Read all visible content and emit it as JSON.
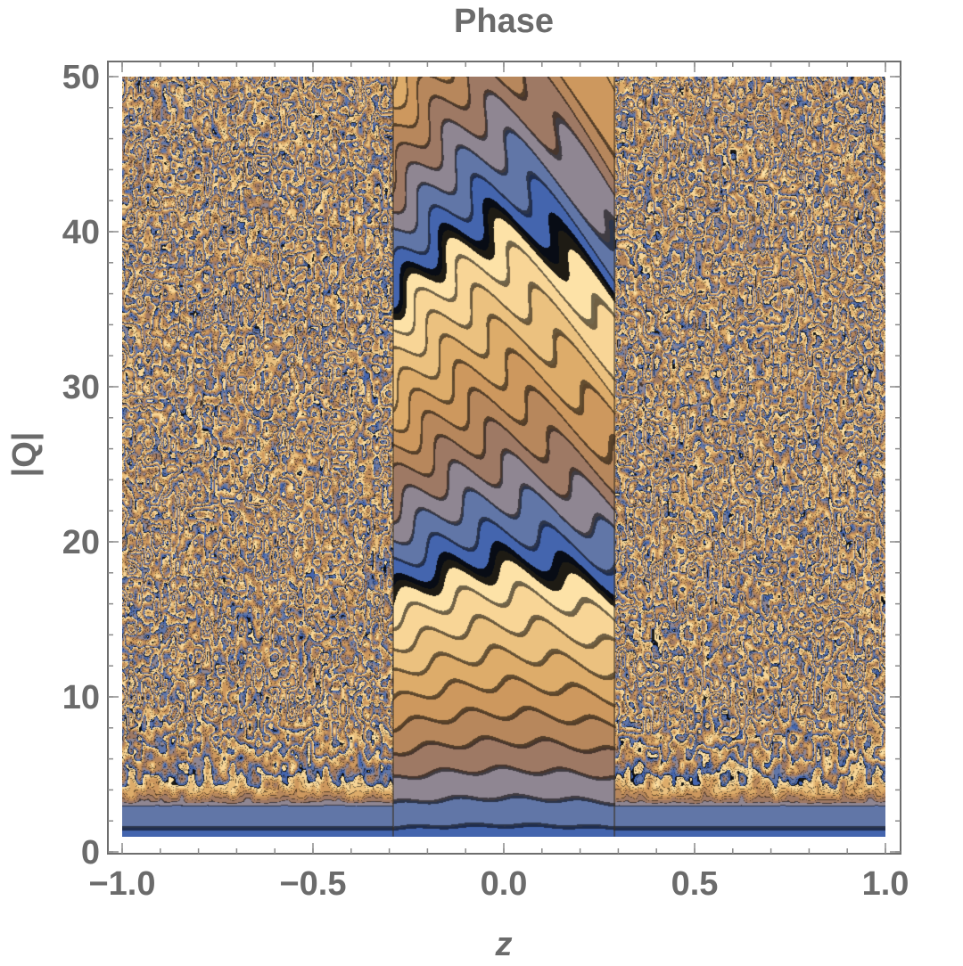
{
  "chart_data": {
    "type": "heatmap",
    "subtype": "contour",
    "title": "Phase",
    "xlabel": "z",
    "ylabel": "|Q|",
    "xlim": [
      -1.0,
      1.0
    ],
    "ylim": [
      0,
      50
    ],
    "data_x_range": [
      -1.0,
      1.0
    ],
    "data_y_range": [
      1,
      50
    ],
    "x_ticks": [
      -1.0,
      -0.5,
      0.0,
      0.5,
      1.0
    ],
    "x_tick_labels": [
      "−1.0",
      "−0.5",
      "0.0",
      "0.5",
      "1.0"
    ],
    "y_ticks": [
      0,
      10,
      20,
      30,
      40,
      50
    ],
    "y_tick_labels": [
      "0",
      "10",
      "20",
      "30",
      "40",
      "50"
    ],
    "central_region_z": [
      -0.29,
      0.29
    ],
    "grid": false,
    "legend": "none",
    "colors": {
      "low": "#3b5fb0",
      "mid_low": "#8a8aa0",
      "mid": "#c8925a",
      "high": "#ffe4a6",
      "contour_line": "#3a3020",
      "frame": "#6e6e6e",
      "text": "#6b6b6b"
    }
  }
}
